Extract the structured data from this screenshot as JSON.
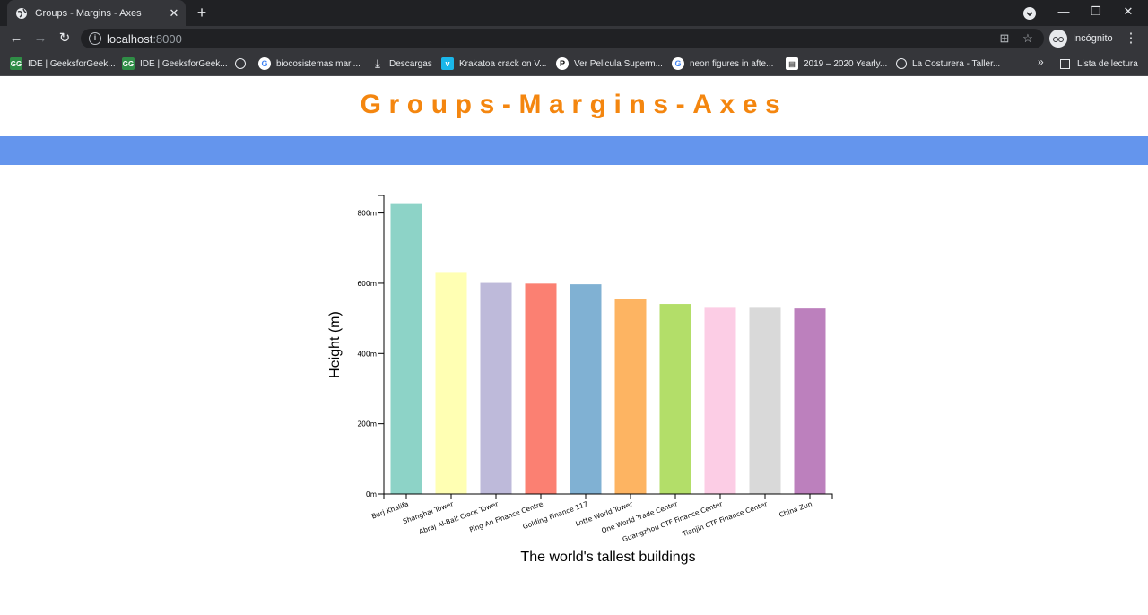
{
  "browser": {
    "tab_title": "Groups - Margins - Axes",
    "tab_close": "✕",
    "new_tab": "+",
    "url_host": "localhost",
    "url_port": ":8000",
    "incognito_label": "Incógnito",
    "bookmarks": [
      {
        "label": "IDE | GeeksforGeek...",
        "icon": "gfg-icon"
      },
      {
        "label": "IDE | GeeksforGeek...",
        "icon": "gfg-icon"
      },
      {
        "label": "",
        "icon": "globe-icon"
      },
      {
        "label": "biocosistemas mari...",
        "icon": "google-icon"
      },
      {
        "label": "Descargas",
        "icon": "download-icon"
      },
      {
        "label": "Krakatoa crack on V...",
        "icon": "vimeo-icon"
      },
      {
        "label": "Ver Pelicula Superm...",
        "icon": "p-icon"
      },
      {
        "label": "neon figures in afte...",
        "icon": "google-icon"
      },
      {
        "label": "2019 – 2020 Yearly...",
        "icon": "doc-icon"
      },
      {
        "label": "La Costurera - Taller...",
        "icon": "globe-icon"
      }
    ],
    "bookmarks_more": "»",
    "reading_list": "Lista de lectura"
  },
  "page": {
    "heading": "Groups-Margins-Axes",
    "band_color": "#6495ed",
    "heading_color": "#f4860f"
  },
  "chart_data": {
    "type": "bar",
    "categories": [
      "Burj Khalifa",
      "Shanghai Tower",
      "Abraj Al-Bait Clock Tower",
      "Ping An Finance Centre",
      "Golding Finance 117",
      "Lotte World Tower",
      "One World Trade Center",
      "Guangzhou CTF Finance Center",
      "Tianjin CTF Finance Center",
      "China Zun"
    ],
    "values": [
      828,
      632,
      601,
      599,
      597,
      555,
      541,
      530,
      530,
      528
    ],
    "colors": [
      "#8dd3c7",
      "#ffffb3",
      "#bebada",
      "#fb8072",
      "#80b1d3",
      "#fdb462",
      "#b3de69",
      "#fccde5",
      "#d9d9d9",
      "#bc80bd"
    ],
    "y_ticks": [
      "0m",
      "200m",
      "400m",
      "600m",
      "800m"
    ],
    "y_tick_values": [
      0,
      200,
      400,
      600,
      800
    ],
    "ylim": [
      0,
      850
    ],
    "xlabel": "The world's tallest buildings",
    "ylabel": "Height (m)",
    "grid": false
  }
}
